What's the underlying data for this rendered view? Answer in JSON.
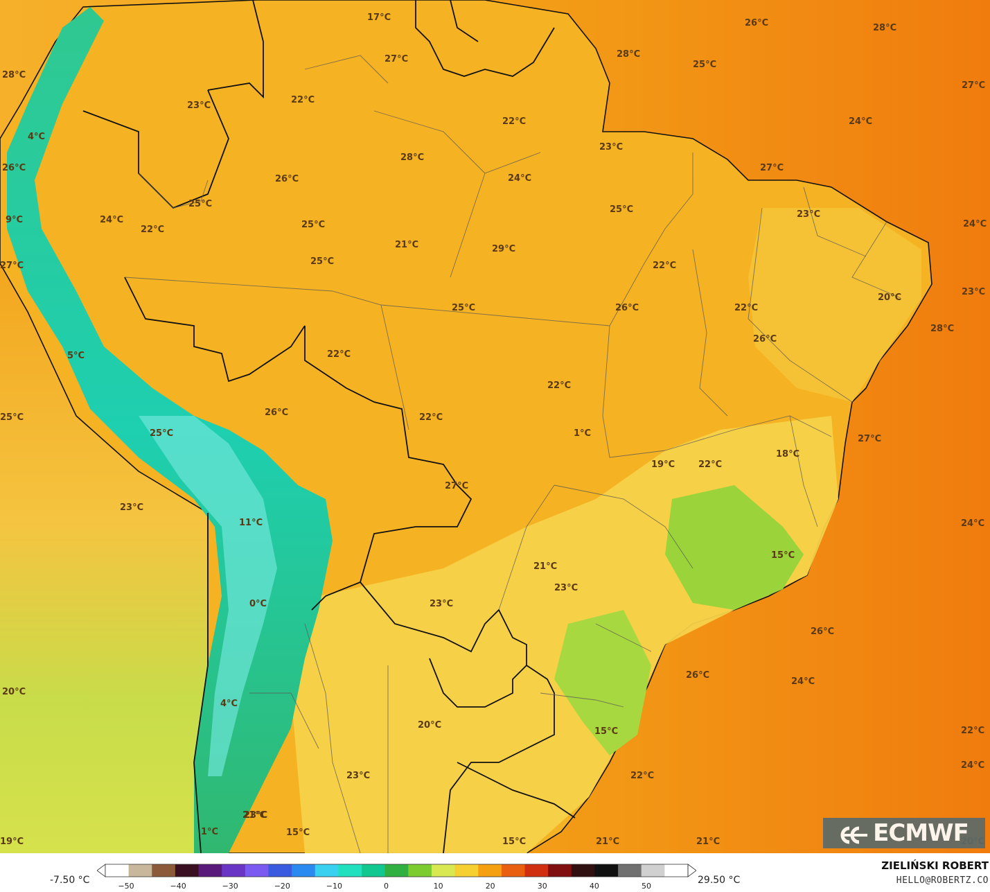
{
  "map": {
    "labels": [
      {
        "text": "17°C"
      },
      {
        "text": "27°C"
      },
      {
        "text": "28°C"
      },
      {
        "text": "28°C"
      },
      {
        "text": "25°C"
      },
      {
        "text": "26°C"
      },
      {
        "text": "27°C"
      },
      {
        "text": "28°C"
      },
      {
        "text": "22°C"
      },
      {
        "text": "23°C"
      },
      {
        "text": "22°C"
      },
      {
        "text": "24°C"
      },
      {
        "text": "4°C"
      },
      {
        "text": "28°C"
      },
      {
        "text": "23°C"
      },
      {
        "text": "26°C"
      },
      {
        "text": "24°C"
      },
      {
        "text": "27°C"
      },
      {
        "text": "26°C"
      },
      {
        "text": "25°C"
      },
      {
        "text": "9°C"
      },
      {
        "text": "25°C"
      },
      {
        "text": "23°C"
      },
      {
        "text": "24°C"
      },
      {
        "text": "24°C"
      },
      {
        "text": "22°C"
      },
      {
        "text": "25°C"
      },
      {
        "text": "21°C"
      },
      {
        "text": "29°C"
      },
      {
        "text": "23°C"
      },
      {
        "text": "25°C"
      },
      {
        "text": "22°C"
      },
      {
        "text": "20°C"
      },
      {
        "text": "27°C"
      },
      {
        "text": "25°C"
      },
      {
        "text": "26°C"
      },
      {
        "text": "22°C"
      },
      {
        "text": "28°C"
      },
      {
        "text": "5°C"
      },
      {
        "text": "22°C"
      },
      {
        "text": "26°C"
      },
      {
        "text": "22°C"
      },
      {
        "text": "25°C"
      },
      {
        "text": "26°C"
      },
      {
        "text": "22°C"
      },
      {
        "text": "1°C"
      },
      {
        "text": "25°C"
      },
      {
        "text": "27°C"
      },
      {
        "text": "19°C"
      },
      {
        "text": "22°C"
      },
      {
        "text": "18°C"
      },
      {
        "text": "27°C"
      },
      {
        "text": "23°C"
      },
      {
        "text": "11°C"
      },
      {
        "text": "24°C"
      },
      {
        "text": "20°C"
      },
      {
        "text": "21°C"
      },
      {
        "text": "15°C"
      },
      {
        "text": "23°C"
      },
      {
        "text": "0°C"
      },
      {
        "text": "23°C"
      },
      {
        "text": "26°C"
      },
      {
        "text": "26°C"
      },
      {
        "text": "24°C"
      },
      {
        "text": "20°C"
      },
      {
        "text": "4°C"
      },
      {
        "text": "22°C"
      },
      {
        "text": "15°C"
      },
      {
        "text": "22°C"
      },
      {
        "text": "23°C"
      },
      {
        "text": "24°C"
      },
      {
        "text": "23°C"
      },
      {
        "text": "21°C"
      },
      {
        "text": "15°C"
      },
      {
        "text": "1°C"
      },
      {
        "text": "19°C"
      },
      {
        "text": "15°C"
      },
      {
        "text": "21°C"
      },
      {
        "text": "21°C"
      },
      {
        "text": "20°C"
      }
    ]
  },
  "logo": {
    "text": "ECMWF"
  },
  "legend": {
    "min_label": "-7.50 °C",
    "max_label": "29.50 °C",
    "ticks": [
      "−50",
      "−40",
      "−30",
      "−20",
      "−10",
      "0",
      "10",
      "20",
      "30",
      "40",
      "50"
    ],
    "colors": [
      "#ffffff",
      "#c9b79b",
      "#8a5a3a",
      "#3a1020",
      "#5a1a7a",
      "#6a34c4",
      "#7a5af0",
      "#3a5ae0",
      "#2a8af0",
      "#3ad0f0",
      "#20e0c0",
      "#10c890",
      "#30b040",
      "#7ccc30",
      "#d8e850",
      "#f6d030",
      "#f5a010",
      "#e86010",
      "#d03010",
      "#801010",
      "#301010",
      "#101010",
      "#707070",
      "#d0d0d0",
      "#ffffff"
    ]
  },
  "author": {
    "name": "ZIELIŃSKI ROBERT",
    "email": "HELLO@ROBERTZ.CO"
  },
  "colors": {
    "ocean_warm": "#f28a10",
    "land_warm": "#f4b31e",
    "land_mild": "#f5d24a",
    "cool": "#9ad43a",
    "andes": "#1ec9a8"
  }
}
